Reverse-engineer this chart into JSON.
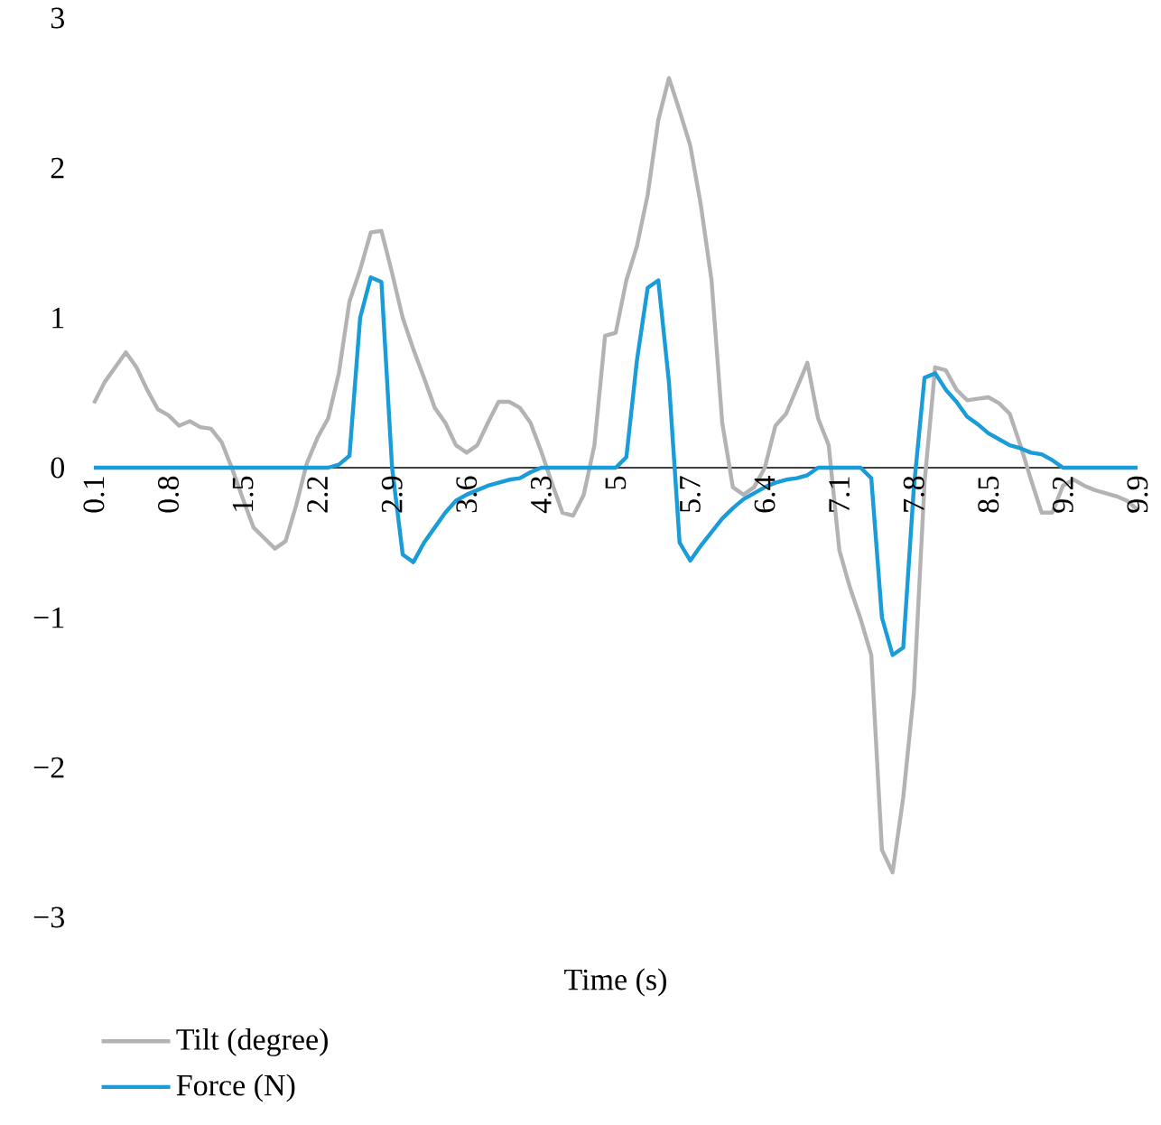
{
  "chart_data": {
    "type": "line",
    "xlabel": "Time (s)",
    "categories": [
      "0.1",
      null,
      null,
      null,
      null,
      null,
      null,
      "0.8",
      null,
      null,
      null,
      null,
      null,
      null,
      "1.5",
      null,
      null,
      null,
      null,
      null,
      null,
      "2.2",
      null,
      null,
      null,
      null,
      null,
      null,
      "2.9",
      null,
      null,
      null,
      null,
      null,
      null,
      "3.6",
      null,
      null,
      null,
      null,
      null,
      null,
      "4.3",
      null,
      null,
      null,
      null,
      null,
      null,
      "5",
      null,
      null,
      null,
      null,
      null,
      null,
      "5.7",
      null,
      null,
      null,
      null,
      null,
      null,
      "6.4",
      null,
      null,
      null,
      null,
      null,
      null,
      "7.1",
      null,
      null,
      null,
      null,
      null,
      null,
      "7.8",
      null,
      null,
      null,
      null,
      null,
      null,
      "8.5",
      null,
      null,
      null,
      null,
      null,
      null,
      "9.2",
      null,
      null,
      null,
      null,
      null,
      null,
      "9.9"
    ],
    "series": [
      {
        "name": "Tilt (degree)",
        "color": "#b3b3b3",
        "values": [
          0.43,
          0.57,
          0.67,
          0.77,
          0.67,
          0.52,
          0.39,
          0.35,
          0.28,
          0.31,
          0.27,
          0.26,
          0.17,
          -0.01,
          -0.21,
          -0.4,
          -0.47,
          -0.54,
          -0.49,
          -0.25,
          0.03,
          0.2,
          0.33,
          0.63,
          1.11,
          1.32,
          1.57,
          1.58,
          1.3,
          1.0,
          0.79,
          0.6,
          0.4,
          0.3,
          0.15,
          0.1,
          0.15,
          0.3,
          0.44,
          0.44,
          0.4,
          0.3,
          0.11,
          -0.1,
          -0.3,
          -0.32,
          -0.18,
          0.15,
          0.88,
          0.9,
          1.25,
          1.48,
          1.82,
          2.32,
          2.6,
          2.38,
          2.15,
          1.75,
          1.25,
          0.3,
          -0.13,
          -0.18,
          -0.13,
          0.0,
          0.28,
          0.36,
          0.53,
          0.7,
          0.33,
          0.15,
          -0.55,
          -0.8,
          -1.01,
          -1.25,
          -2.55,
          -2.7,
          -2.2,
          -1.5,
          -0.1,
          0.67,
          0.65,
          0.52,
          0.45,
          0.46,
          0.47,
          0.43,
          0.36,
          0.15,
          -0.08,
          -0.3,
          -0.3,
          -0.12,
          -0.08,
          -0.12,
          -0.15,
          -0.17,
          -0.19,
          -0.22,
          -0.28
        ]
      },
      {
        "name": "Force (N)",
        "color": "#1a9cd8",
        "values": [
          0,
          0,
          0,
          0,
          0,
          0,
          0,
          0,
          0,
          0,
          0,
          0,
          0,
          0,
          0,
          0,
          0,
          0,
          0,
          0,
          0,
          0,
          0,
          0.02,
          0.08,
          1.0,
          1.27,
          1.24,
          0.0,
          -0.58,
          -0.63,
          -0.5,
          -0.4,
          -0.3,
          -0.22,
          -0.18,
          -0.15,
          -0.12,
          -0.1,
          -0.08,
          -0.07,
          -0.03,
          0,
          0,
          0,
          0,
          0,
          0,
          0,
          0,
          0.07,
          0.72,
          1.2,
          1.25,
          0.57,
          -0.5,
          -0.62,
          -0.52,
          -0.43,
          -0.34,
          -0.27,
          -0.21,
          -0.17,
          -0.13,
          -0.1,
          -0.08,
          -0.07,
          -0.05,
          0,
          0,
          0,
          0,
          0,
          -0.07,
          -1.0,
          -1.25,
          -1.2,
          -0.13,
          0.6,
          0.63,
          0.52,
          0.44,
          0.34,
          0.29,
          0.23,
          0.19,
          0.15,
          0.13,
          0.1,
          0.09,
          0.05,
          0,
          0,
          0,
          0,
          0,
          0,
          0,
          0
        ]
      }
    ],
    "ylim": [
      -3,
      3
    ],
    "yticks": [
      {
        "value": -3,
        "label": "−3"
      },
      {
        "value": -2,
        "label": "−2"
      },
      {
        "value": -1,
        "label": "−1"
      },
      0,
      1,
      2,
      3
    ],
    "legend": "bottom",
    "line_style": "solid"
  }
}
